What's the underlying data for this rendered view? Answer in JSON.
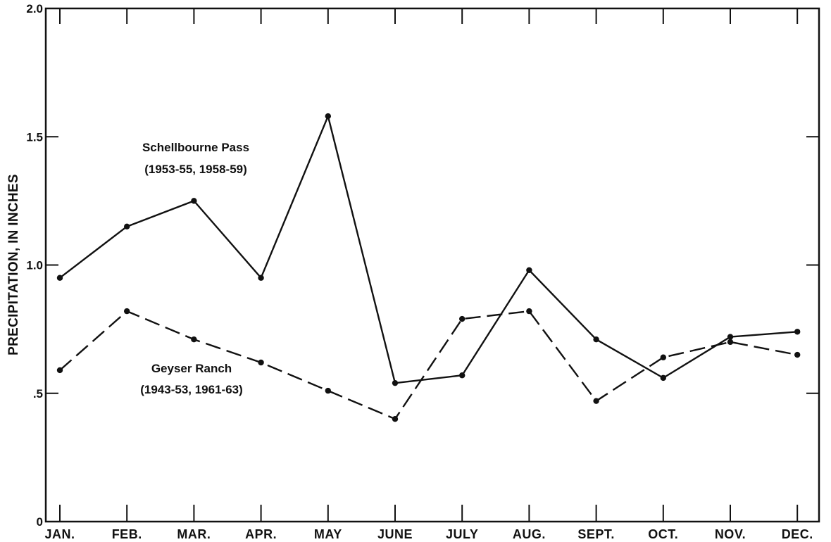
{
  "chart_data": {
    "type": "line",
    "title": "",
    "xlabel": "",
    "ylabel": "PRECIPITATION, IN INCHES",
    "categories": [
      "JAN.",
      "FEB.",
      "MAR.",
      "APR.",
      "MAY",
      "JUNE",
      "JULY",
      "AUG.",
      "SEPT.",
      "OCT.",
      "NOV.",
      "DEC."
    ],
    "ylim": [
      0,
      2.0
    ],
    "yticks": [
      {
        "value": 0,
        "label": "0"
      },
      {
        "value": 0.5,
        "label": ".5"
      },
      {
        "value": 1.0,
        "label": "1.0"
      },
      {
        "value": 1.5,
        "label": "1.5"
      },
      {
        "value": 2.0,
        "label": "2.0"
      }
    ],
    "grid": false,
    "legend": "none",
    "series": [
      {
        "name": "Schellbourne Pass",
        "period": "(1953-55, 1958-59)",
        "line_style": "solid",
        "values": [
          0.95,
          1.15,
          1.25,
          0.95,
          1.58,
          0.54,
          0.57,
          0.98,
          0.71,
          0.56,
          0.72,
          0.74
        ]
      },
      {
        "name": "Geyser Ranch",
        "period": "(1943-53, 1961-63)",
        "line_style": "dashed",
        "values": [
          0.59,
          0.82,
          0.71,
          0.62,
          0.51,
          0.4,
          0.79,
          0.82,
          0.47,
          0.64,
          0.7,
          0.65
        ]
      }
    ]
  }
}
